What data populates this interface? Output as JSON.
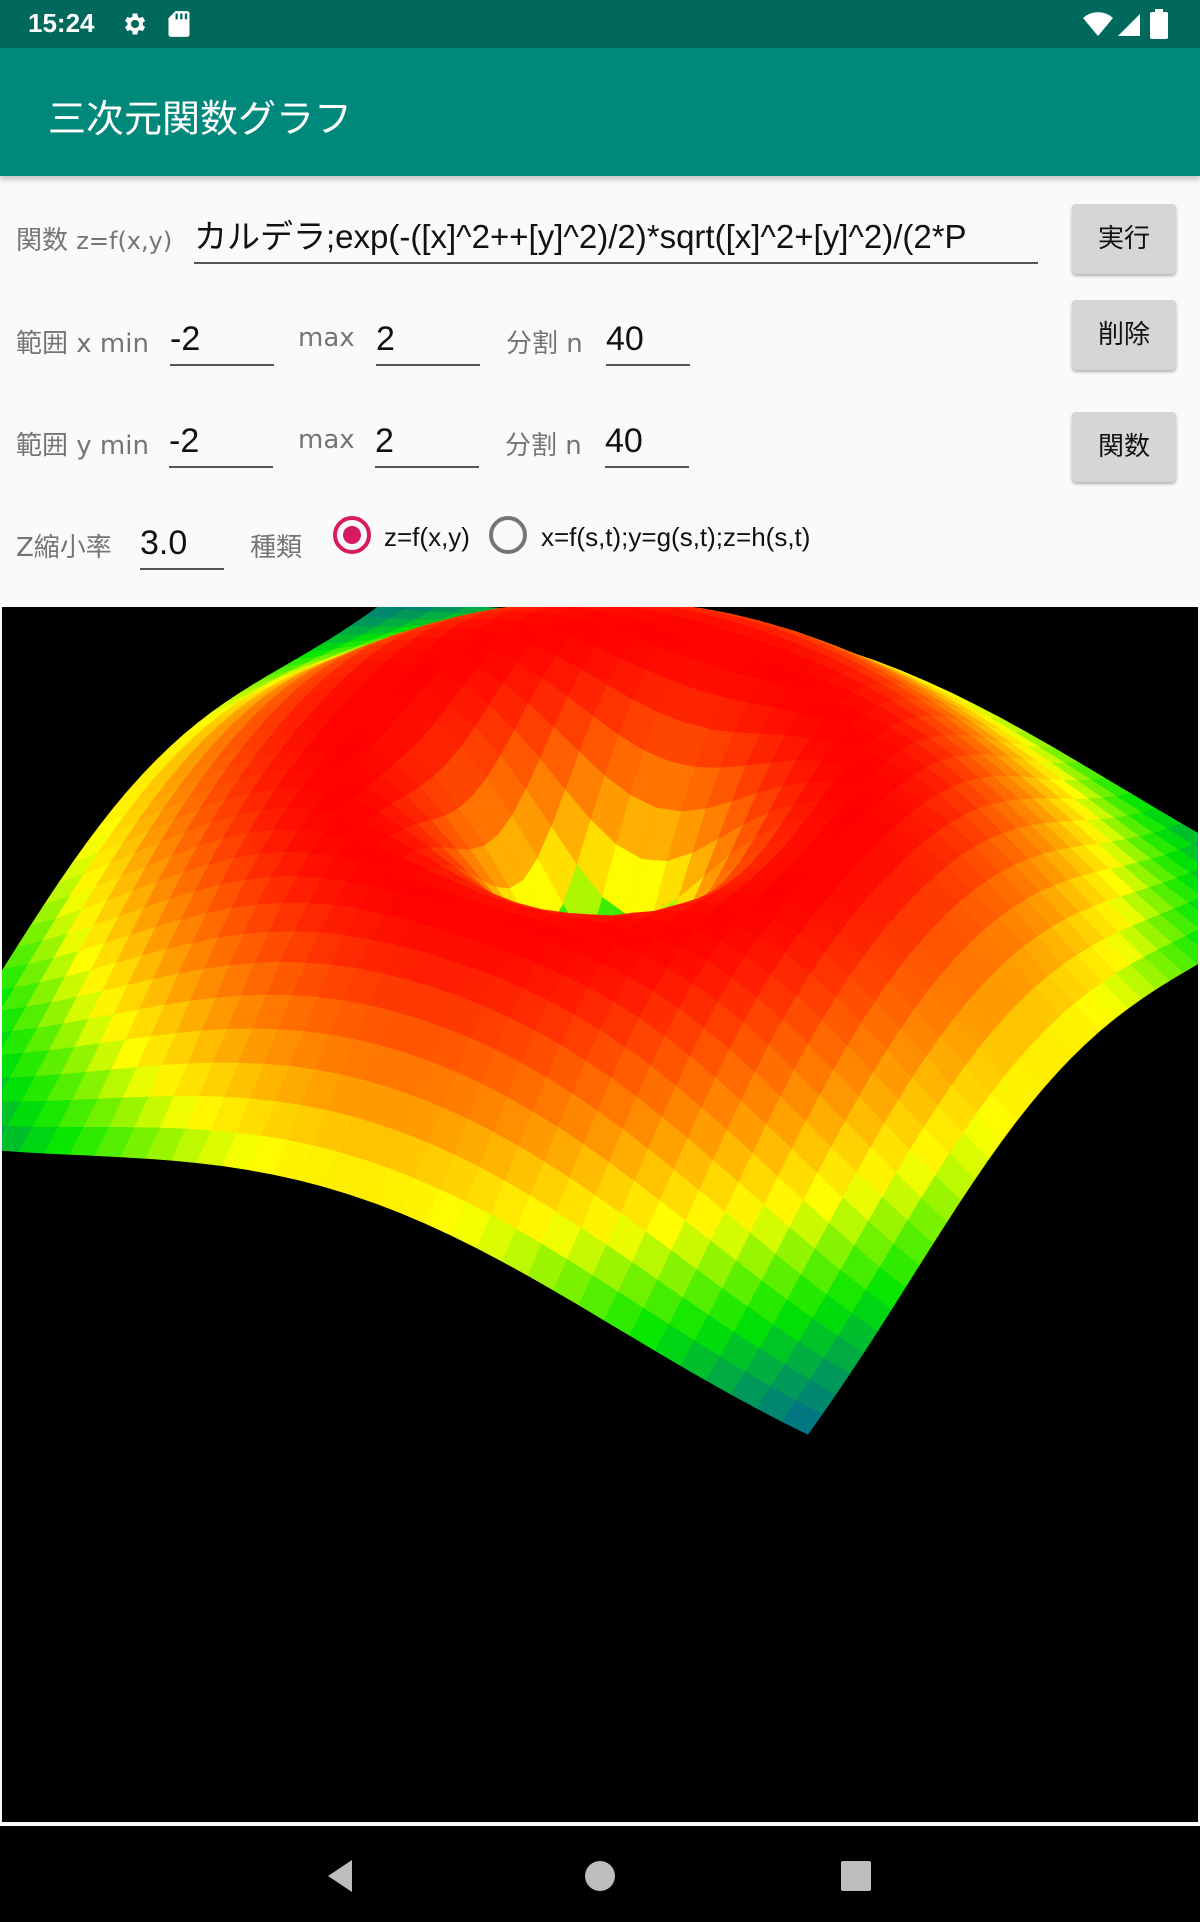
{
  "status_bar": {
    "time": "15:24",
    "icons": [
      "gear-icon",
      "sd-card-icon",
      "wifi-icon",
      "signal-icon",
      "battery-icon"
    ]
  },
  "app_bar": {
    "title": "三次元関数グラフ"
  },
  "form": {
    "function_label": "関数",
    "function_label_small": "z=f(x,y)",
    "function_value": "カルデラ;exp(-([x]^2++[y]^2)/2)*sqrt([x]^2+[y]^2)/(2*P",
    "xrange_label": "範囲 x min",
    "xmin": "-2",
    "xmax_label": "max",
    "xmax": "2",
    "xdiv_label": "分割 n",
    "xdiv": "40",
    "yrange_label": "範囲 y min",
    "ymin": "-2",
    "ymax_label": "max",
    "ymax": "2",
    "ydiv_label": "分割 n",
    "ydiv": "40",
    "zscale_label": "Z縮小率",
    "zscale": "3.0",
    "type_label": "種類",
    "radio_options": [
      "z=f(x,y)",
      "x=f(s,t);y=g(s,t);z=h(s,t)"
    ],
    "radio_selected": 0
  },
  "buttons": {
    "run": "実行",
    "delete": "削除",
    "functions": "関数"
  },
  "colors": {
    "status_bar": "#00695c",
    "app_bar": "#00897b",
    "radio_accent": "#d81b60",
    "plot_background": "#000000"
  },
  "plot": {
    "surface_colormap": [
      "blue",
      "green",
      "yellow",
      "orange",
      "red"
    ]
  },
  "nav_bar": {
    "icons": [
      "back-icon",
      "home-icon",
      "recents-icon"
    ]
  }
}
